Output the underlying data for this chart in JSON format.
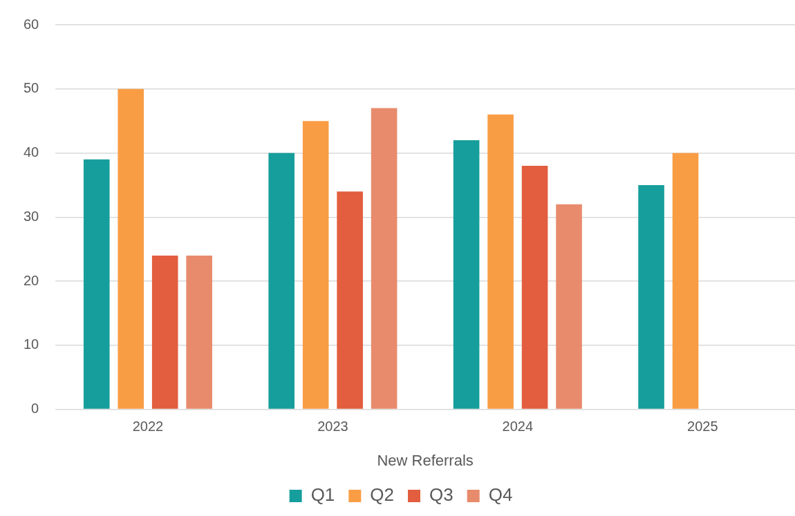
{
  "chart_data": {
    "type": "bar",
    "xlabel": "New Referrals",
    "categories": [
      "2022",
      "2023",
      "2024",
      "2025"
    ],
    "series": [
      {
        "name": "Q1",
        "color": "#169e9c",
        "values": [
          39,
          40,
          42,
          35
        ]
      },
      {
        "name": "Q2",
        "color": "#f99d45",
        "values": [
          50,
          45,
          46,
          40
        ]
      },
      {
        "name": "Q3",
        "color": "#e25e3e",
        "values": [
          24,
          34,
          38,
          null
        ]
      },
      {
        "name": "Q4",
        "color": "#e88b6c",
        "values": [
          24,
          47,
          32,
          null
        ]
      }
    ],
    "ylim": [
      0,
      60
    ],
    "yticks": [
      0,
      10,
      20,
      30,
      40,
      50,
      60
    ],
    "grid": "y",
    "legend": "bottom"
  }
}
